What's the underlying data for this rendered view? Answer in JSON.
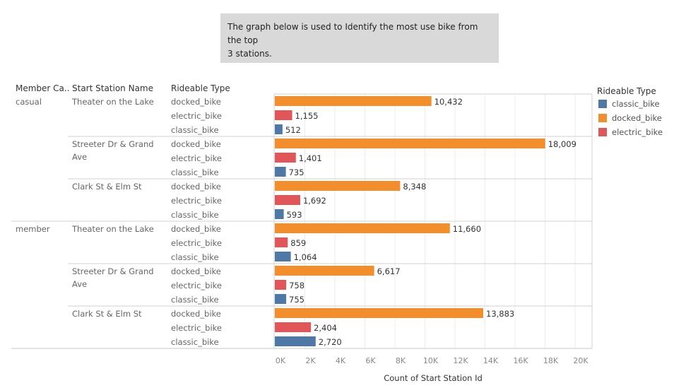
{
  "note": {
    "line1": "The graph below is used to Identify the most use bike from the top",
    "line2": "3 stations."
  },
  "headers": {
    "member": "Member Ca..",
    "station": "Start Station Name",
    "type": "Rideable Type"
  },
  "legend": {
    "title": "Rideable Type",
    "items": [
      {
        "label": "classic_bike",
        "color": "#4e79a7"
      },
      {
        "label": "docked_bike",
        "color": "#f28e2b"
      },
      {
        "label": "electric_bike",
        "color": "#e15759"
      }
    ]
  },
  "chart_data": {
    "type": "bar",
    "orientation": "horizontal",
    "xlabel": "Count of Start Station Id",
    "xlim": [
      0,
      21000
    ],
    "xticks": [
      "0K",
      "2K",
      "4K",
      "6K",
      "8K",
      "10K",
      "12K",
      "14K",
      "16K",
      "18K",
      "20K"
    ],
    "grid": true,
    "legend_position": "right",
    "colors": {
      "classic_bike": "#4e79a7",
      "docked_bike": "#f28e2b",
      "electric_bike": "#e15759"
    },
    "groups": [
      {
        "member": "casual",
        "station_lines": [
          "Theater on the Lake"
        ],
        "rows": [
          {
            "type": "docked_bike",
            "value": 10432,
            "label": "10,432"
          },
          {
            "type": "electric_bike",
            "value": 1155,
            "label": "1,155"
          },
          {
            "type": "classic_bike",
            "value": 512,
            "label": "512"
          }
        ]
      },
      {
        "member": "",
        "station_lines": [
          "Streeter Dr & Grand",
          "Ave"
        ],
        "rows": [
          {
            "type": "docked_bike",
            "value": 18009,
            "label": "18,009"
          },
          {
            "type": "electric_bike",
            "value": 1401,
            "label": "1,401"
          },
          {
            "type": "classic_bike",
            "value": 735,
            "label": "735"
          }
        ]
      },
      {
        "member": "",
        "station_lines": [
          "Clark St & Elm St"
        ],
        "rows": [
          {
            "type": "docked_bike",
            "value": 8348,
            "label": "8,348"
          },
          {
            "type": "electric_bike",
            "value": 1692,
            "label": "1,692"
          },
          {
            "type": "classic_bike",
            "value": 593,
            "label": "593"
          }
        ]
      },
      {
        "member": "member",
        "station_lines": [
          "Theater on the Lake"
        ],
        "rows": [
          {
            "type": "docked_bike",
            "value": 11660,
            "label": "11,660"
          },
          {
            "type": "electric_bike",
            "value": 859,
            "label": "859"
          },
          {
            "type": "classic_bike",
            "value": 1064,
            "label": "1,064"
          }
        ]
      },
      {
        "member": "",
        "station_lines": [
          "Streeter Dr & Grand",
          "Ave"
        ],
        "rows": [
          {
            "type": "docked_bike",
            "value": 6617,
            "label": "6,617"
          },
          {
            "type": "electric_bike",
            "value": 758,
            "label": "758"
          },
          {
            "type": "classic_bike",
            "value": 755,
            "label": "755"
          }
        ]
      },
      {
        "member": "",
        "station_lines": [
          "Clark St & Elm St"
        ],
        "rows": [
          {
            "type": "docked_bike",
            "value": 13883,
            "label": "13,883"
          },
          {
            "type": "electric_bike",
            "value": 2404,
            "label": "2,404"
          },
          {
            "type": "classic_bike",
            "value": 2720,
            "label": "2,720"
          }
        ]
      }
    ]
  }
}
